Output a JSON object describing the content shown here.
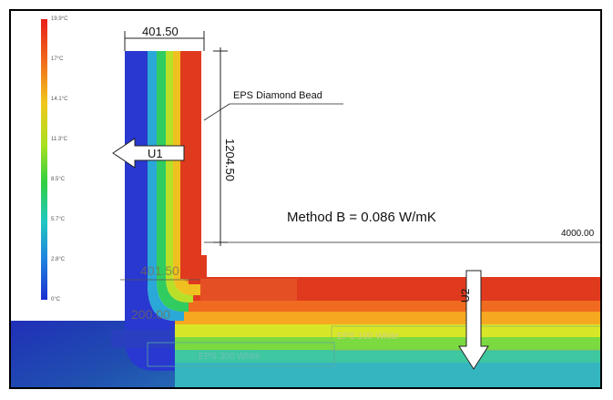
{
  "legend": {
    "ticks": [
      "19.9°C",
      "17°C",
      "14.1°C",
      "11.3°C",
      "8.5°C",
      "5.7°C",
      "2.8°C",
      "0°C"
    ]
  },
  "dimensions": {
    "top_width": "401.50",
    "vertical_height": "1204.50",
    "horizontal_length": "4000.00",
    "inner_width": "401.50",
    "inner_depth": "200.00"
  },
  "labels": {
    "eps_diamond_bead": "EPS Diamond Bead",
    "method": "Method B = 0.086 W/mK",
    "eps_100_white": "EPS 100 White",
    "eps_300_white": "EPS 300 White"
  },
  "flows": {
    "u1": "U1",
    "u2": "U2"
  },
  "colors": {
    "hot": "#e03a1e",
    "cold": "#2030c8",
    "ground": "#1a3fa0"
  }
}
